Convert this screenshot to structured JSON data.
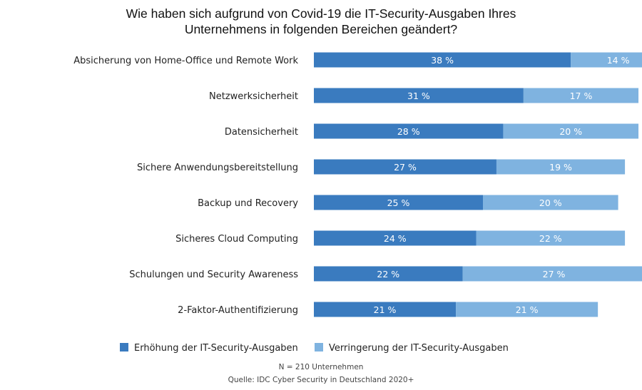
{
  "chart_data": {
    "type": "bar",
    "orientation": "horizontal",
    "stacked": true,
    "title_lines": [
      "Wie haben sich aufgrund von Covid-19 die IT-Security-Ausgaben Ihres",
      "Unternehmens in folgenden Bereichen geändert?"
    ],
    "categories": [
      "Absicherung von Home-Office und Remote Work",
      "Netzwerksicherheit",
      "Datensicherheit",
      "Sichere Anwendungsbereitstellung",
      "Backup und Recovery",
      "Sicheres Cloud Computing",
      "Schulungen und Security Awareness",
      "2-Faktor-Authentifizierung"
    ],
    "series": [
      {
        "name": "Erhöhung der IT-Security-Ausgaben",
        "color": "#3a7bbf",
        "values": [
          38,
          31,
          28,
          27,
          25,
          24,
          22,
          21
        ],
        "labels": [
          "38 %",
          "31 %",
          "28 %",
          "27 %",
          "25 %",
          "24 %",
          "22 %",
          "21 %"
        ]
      },
      {
        "name": "Verringerung der IT-Security-Ausgaben",
        "color": "#7fb3e0",
        "values": [
          14,
          17,
          20,
          19,
          20,
          22,
          27,
          21
        ],
        "labels": [
          "14 %",
          "17 %",
          "20 %",
          "19 %",
          "20 %",
          "22 %",
          "27 %",
          "21 %"
        ]
      }
    ],
    "legend_position": "bottom",
    "grid": false,
    "footnote_lines": [
      "N = 210 Unternehmen",
      "Quelle: IDC Cyber Security in Deutschland 2020+"
    ]
  }
}
